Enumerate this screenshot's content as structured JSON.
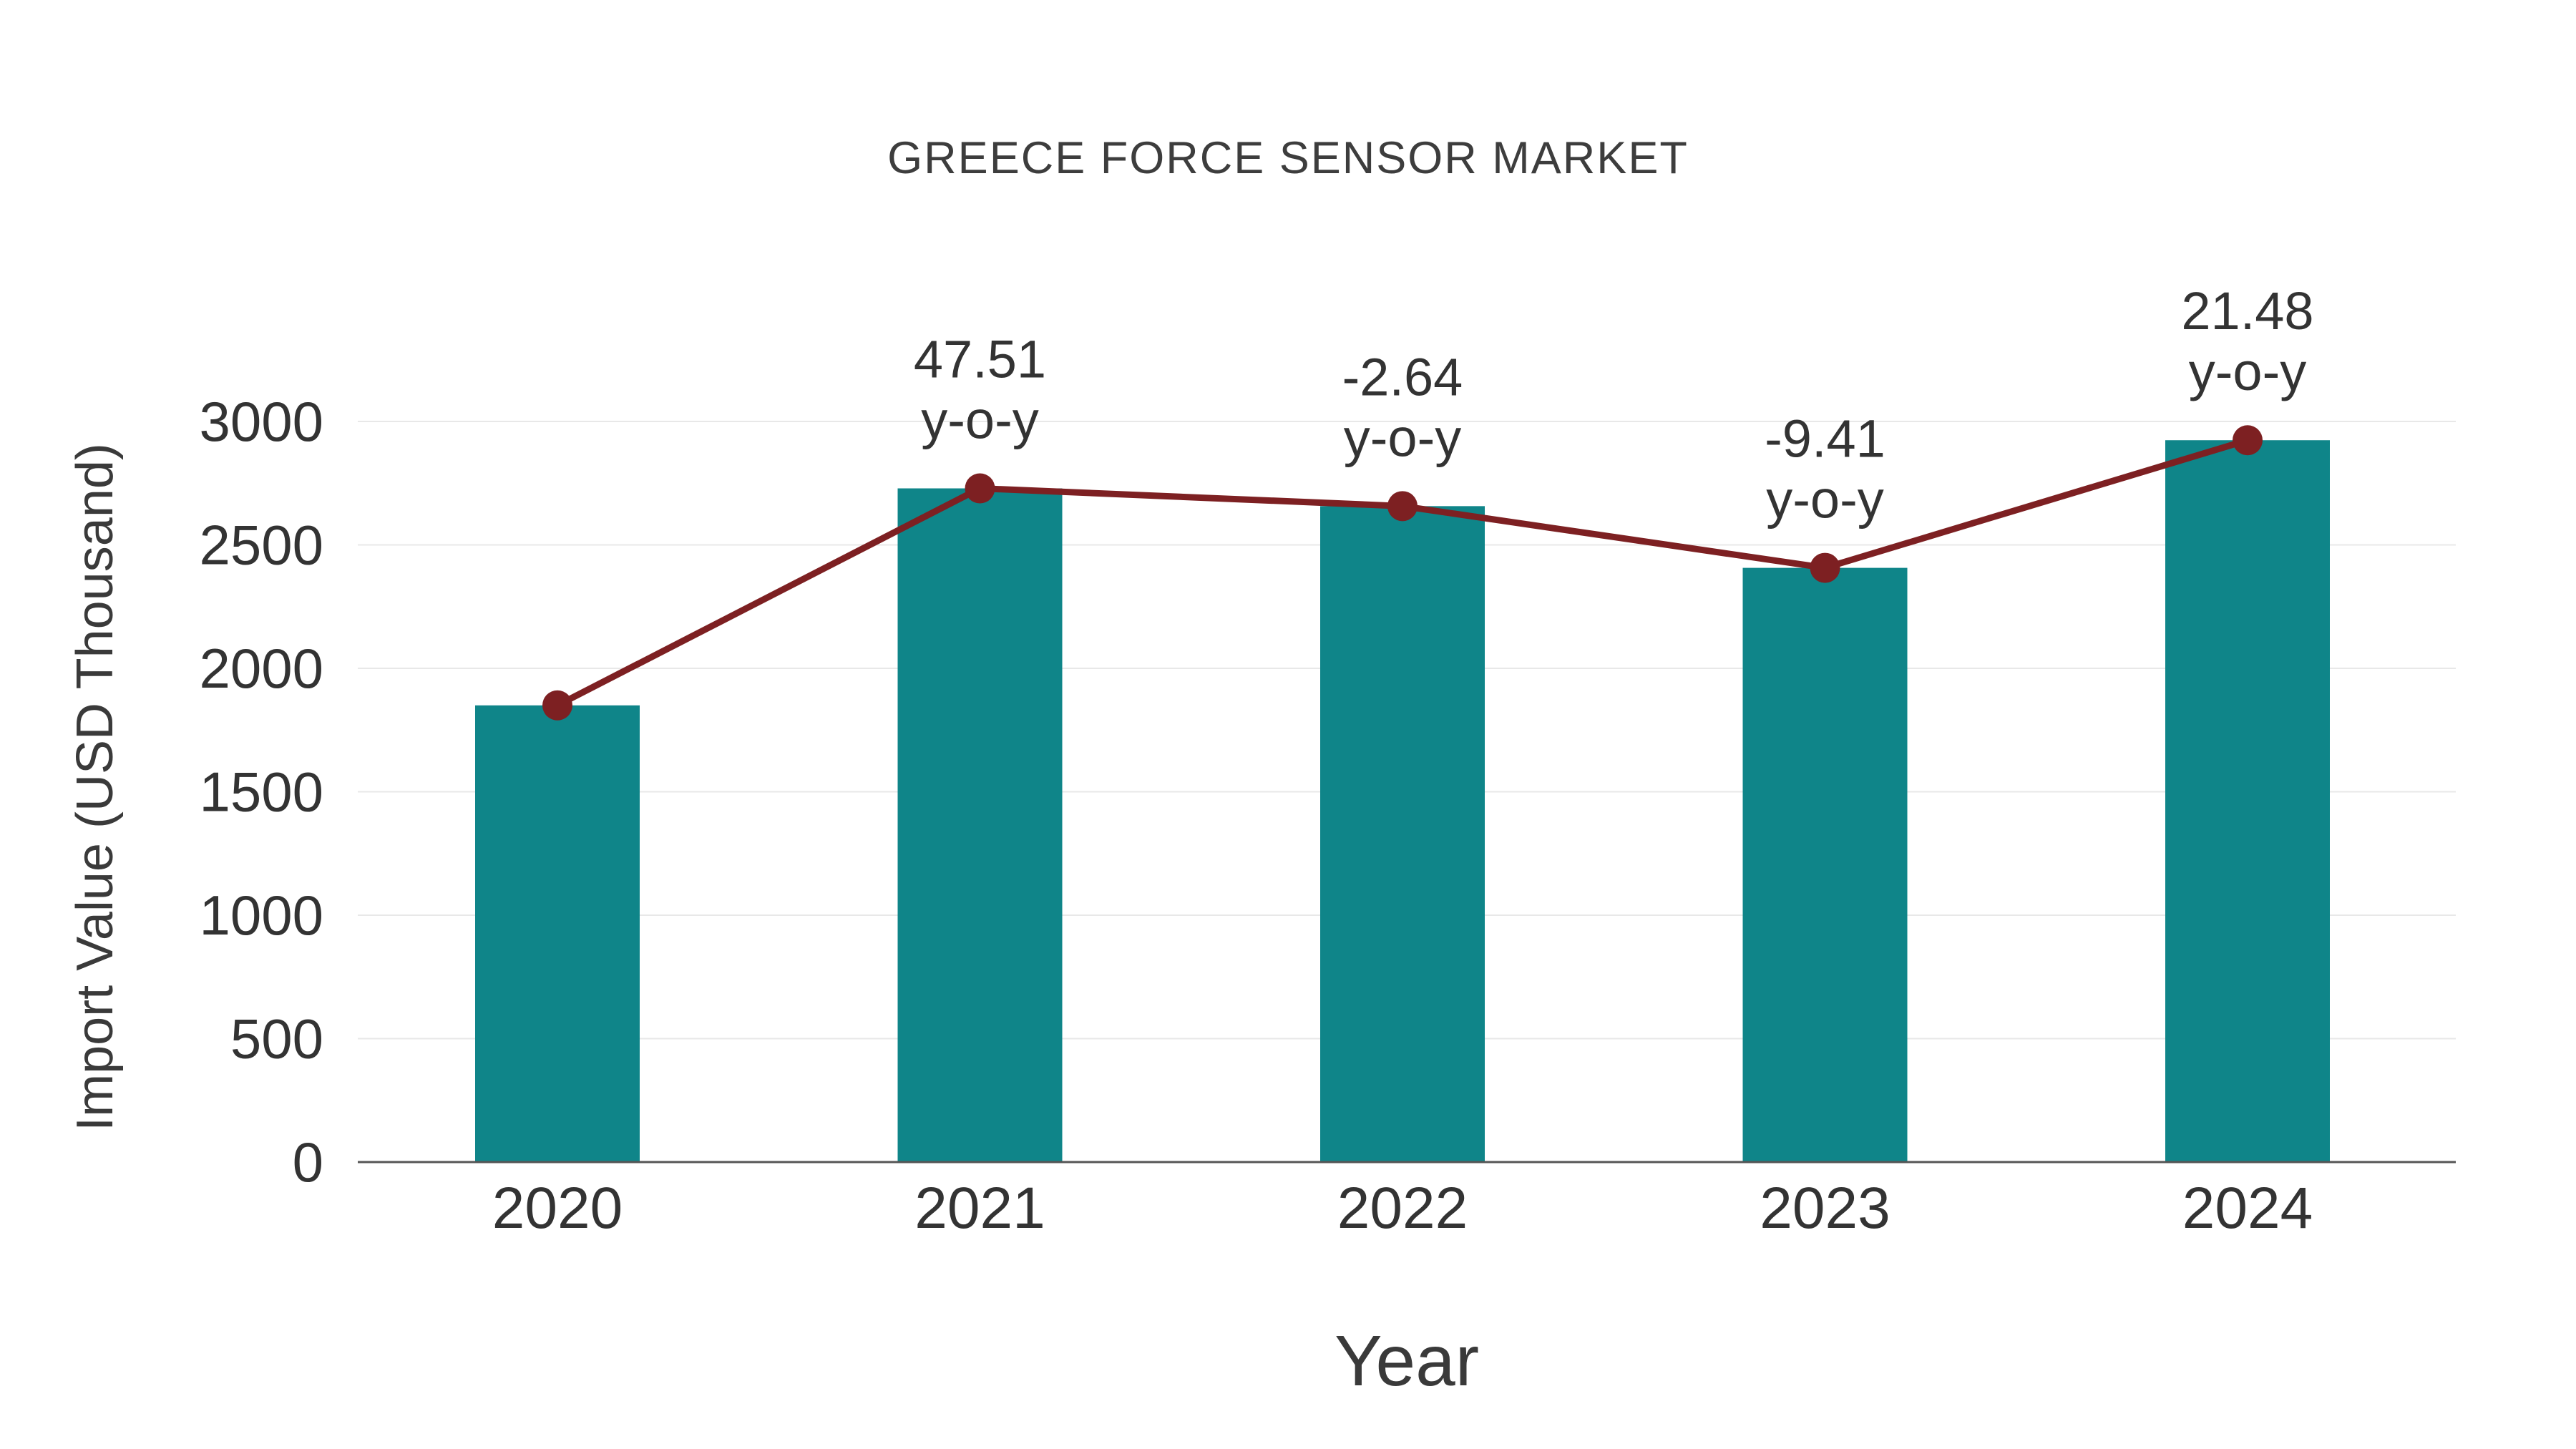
{
  "colors": {
    "bar": "#0f8589",
    "line": "#7d2022",
    "grid": "#e8e8e8",
    "axis": "#555555",
    "text": "#333333"
  },
  "chart_data": {
    "type": "bar",
    "title": "GREECE FORCE SENSOR MARKET",
    "xlabel": "Year",
    "ylabel": "Import Value (USD Thousand)",
    "categories": [
      "2020",
      "2021",
      "2022",
      "2023",
      "2024"
    ],
    "values": [
      1850,
      2729,
      2657,
      2407,
      2924
    ],
    "line_overlay": {
      "name": "import-value-trend",
      "values": [
        1850,
        2729,
        2657,
        2407,
        2924
      ]
    },
    "yoy_labels": [
      null,
      "47.51",
      "-2.64",
      "-9.41",
      "21.48"
    ],
    "yoy_suffix": "y-o-y",
    "ylim": [
      0,
      3000
    ],
    "yticks": [
      0,
      500,
      1000,
      1500,
      2000,
      2500,
      3000
    ],
    "grid": "horizontal",
    "legend": "none"
  }
}
